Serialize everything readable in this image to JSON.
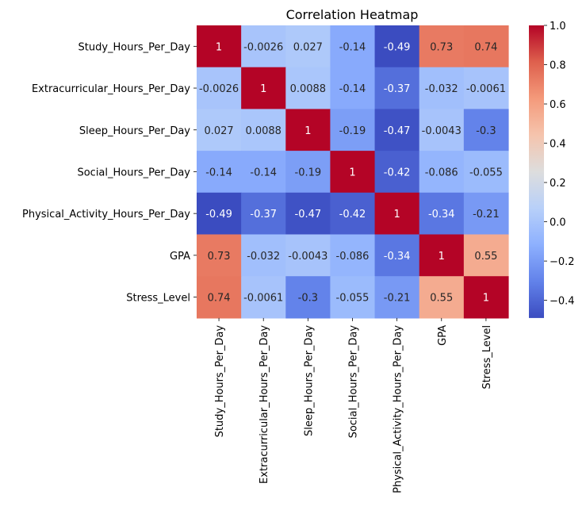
{
  "chart_data": {
    "type": "heatmap",
    "title": "Correlation Heatmap",
    "colormap": "coolwarm",
    "colorbar": {
      "vmin": -0.49,
      "vmax": 1.0,
      "ticks": [
        -0.4,
        -0.2,
        0.0,
        0.2,
        0.4,
        0.6,
        0.8,
        1.0
      ],
      "tick_labels": [
        "−0.4",
        "−0.2",
        "0.0",
        "0.2",
        "0.4",
        "0.6",
        "0.8",
        "1.0"
      ]
    },
    "row_labels": [
      "Study_Hours_Per_Day",
      "Extracurricular_Hours_Per_Day",
      "Sleep_Hours_Per_Day",
      "Social_Hours_Per_Day",
      "Physical_Activity_Hours_Per_Day",
      "GPA",
      "Stress_Level"
    ],
    "col_labels": [
      "Study_Hours_Per_Day",
      "Extracurricular_Hours_Per_Day",
      "Sleep_Hours_Per_Day",
      "Social_Hours_Per_Day",
      "Physical_Activity_Hours_Per_Day",
      "GPA",
      "Stress_Level"
    ],
    "values": [
      [
        1,
        -0.0026,
        0.027,
        -0.14,
        -0.49,
        0.73,
        0.74
      ],
      [
        -0.0026,
        1,
        0.0088,
        -0.14,
        -0.37,
        -0.032,
        -0.0061
      ],
      [
        0.027,
        0.0088,
        1,
        -0.19,
        -0.47,
        -0.0043,
        -0.3
      ],
      [
        -0.14,
        -0.14,
        -0.19,
        1,
        -0.42,
        -0.086,
        -0.055
      ],
      [
        -0.49,
        -0.37,
        -0.47,
        -0.42,
        1,
        -0.34,
        -0.21
      ],
      [
        0.73,
        -0.032,
        -0.0043,
        -0.086,
        -0.34,
        1,
        0.55
      ],
      [
        0.74,
        -0.0061,
        -0.3,
        -0.055,
        -0.21,
        0.55,
        1
      ]
    ],
    "annotations": [
      [
        "1",
        "-0.0026",
        "0.027",
        "-0.14",
        "-0.49",
        "0.73",
        "0.74"
      ],
      [
        "-0.0026",
        "1",
        "0.0088",
        "-0.14",
        "-0.37",
        "-0.032",
        "-0.0061"
      ],
      [
        "0.027",
        "0.0088",
        "1",
        "-0.19",
        "-0.47",
        "-0.0043",
        "-0.3"
      ],
      [
        "-0.14",
        "-0.14",
        "-0.19",
        "1",
        "-0.42",
        "-0.086",
        "-0.055"
      ],
      [
        "-0.49",
        "-0.37",
        "-0.47",
        "-0.42",
        "1",
        "-0.34",
        "-0.21"
      ],
      [
        "0.73",
        "-0.032",
        "-0.0043",
        "-0.086",
        "-0.34",
        "1",
        "0.55"
      ],
      [
        "0.74",
        "-0.0061",
        "-0.3",
        "-0.055",
        "-0.21",
        "0.55",
        "1"
      ]
    ]
  }
}
